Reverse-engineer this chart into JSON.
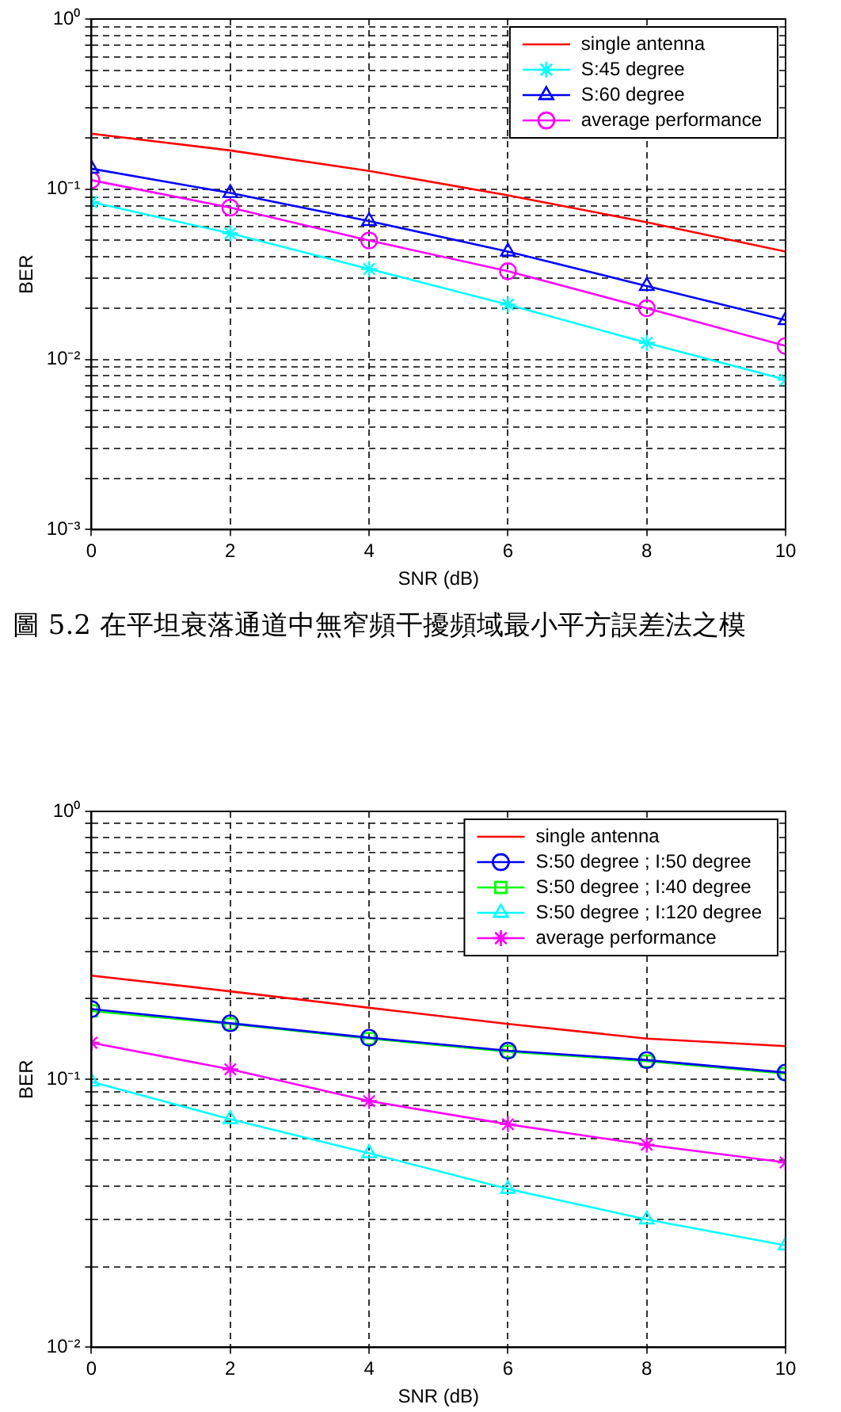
{
  "chart_data": [
    {
      "type": "line",
      "xlabel": "SNR (dB)",
      "ylabel": "BER",
      "log": "y",
      "grid": true,
      "legend": "top right",
      "line_style": "solid",
      "annotations": [
        "圖 5.2 在平坦衰落通道中無窄頻干擾頻域最小平方誤差法之模"
      ],
      "x": [
        0,
        2,
        4,
        6,
        8,
        10
      ],
      "xlim": [
        0,
        10
      ],
      "xticks": [
        0,
        2,
        4,
        6,
        8,
        10
      ],
      "ylim": [
        0.001,
        1
      ],
      "yticks": [
        {
          "value": 0.001,
          "label": "10⁻³"
        },
        {
          "value": 0.002,
          "label": null
        },
        {
          "value": 0.003,
          "label": null
        },
        {
          "value": 0.004,
          "label": null
        },
        {
          "value": 0.005,
          "label": null
        },
        {
          "value": 0.006,
          "label": null
        },
        {
          "value": 0.007,
          "label": null
        },
        {
          "value": 0.008,
          "label": null
        },
        {
          "value": 0.009,
          "label": null
        },
        {
          "value": 0.01,
          "label": "10⁻²"
        },
        {
          "value": 0.02,
          "label": null
        },
        {
          "value": 0.03,
          "label": null
        },
        {
          "value": 0.04,
          "label": null
        },
        {
          "value": 0.05,
          "label": null
        },
        {
          "value": 0.06,
          "label": null
        },
        {
          "value": 0.07,
          "label": null
        },
        {
          "value": 0.08,
          "label": null
        },
        {
          "value": 0.09,
          "label": null
        },
        {
          "value": 0.1,
          "label": "10⁻¹"
        },
        {
          "value": 0.2,
          "label": null
        },
        {
          "value": 0.3,
          "label": null
        },
        {
          "value": 0.4,
          "label": null
        },
        {
          "value": 0.5,
          "label": null
        },
        {
          "value": 0.6,
          "label": null
        },
        {
          "value": 0.7,
          "label": null
        },
        {
          "value": 0.8,
          "label": null
        },
        {
          "value": 0.9,
          "label": null
        },
        {
          "value": 1,
          "label": "10⁰"
        }
      ],
      "series": [
        {
          "name": "single antenna",
          "color": "#ff0000",
          "marker": "none",
          "values": [
            0.212,
            0.169,
            0.128,
            0.092,
            0.064,
            0.043
          ]
        },
        {
          "name": "S:45 degree",
          "color": "#00ffff",
          "marker": "cross",
          "values": [
            0.084,
            0.055,
            0.034,
            0.021,
            0.0125,
            0.0076
          ]
        },
        {
          "name": "S:60 degree",
          "color": "#0000ff",
          "marker": "triangle",
          "values": [
            0.132,
            0.095,
            0.065,
            0.043,
            0.027,
            0.017
          ]
        },
        {
          "name": "average performance",
          "color": "#ff00ff",
          "marker": "circle",
          "values": [
            0.113,
            0.078,
            0.05,
            0.033,
            0.02,
            0.012
          ]
        }
      ]
    },
    {
      "type": "line",
      "xlabel": "SNR (dB)",
      "ylabel": "BER",
      "log": "y",
      "grid": true,
      "legend": "top right",
      "line_style": "solid",
      "x": [
        0,
        2,
        4,
        6,
        8,
        10
      ],
      "xlim": [
        0,
        10
      ],
      "xticks": [
        0,
        2,
        4,
        6,
        8,
        10
      ],
      "ylim": [
        0.01,
        1
      ],
      "yticks": [
        {
          "value": 0.01,
          "label": "10⁻²"
        },
        {
          "value": 0.02,
          "label": null
        },
        {
          "value": 0.03,
          "label": null
        },
        {
          "value": 0.04,
          "label": null
        },
        {
          "value": 0.05,
          "label": null
        },
        {
          "value": 0.06,
          "label": null
        },
        {
          "value": 0.07,
          "label": null
        },
        {
          "value": 0.08,
          "label": null
        },
        {
          "value": 0.09,
          "label": null
        },
        {
          "value": 0.1,
          "label": "10⁻¹"
        },
        {
          "value": 0.2,
          "label": null
        },
        {
          "value": 0.3,
          "label": null
        },
        {
          "value": 0.4,
          "label": null
        },
        {
          "value": 0.5,
          "label": null
        },
        {
          "value": 0.6,
          "label": null
        },
        {
          "value": 0.7,
          "label": null
        },
        {
          "value": 0.8,
          "label": null
        },
        {
          "value": 0.9,
          "label": null
        },
        {
          "value": 1,
          "label": "10⁰"
        }
      ],
      "series": [
        {
          "name": "single antenna",
          "color": "#ff0000",
          "marker": "none",
          "values": [
            0.244,
            0.213,
            0.185,
            0.161,
            0.142,
            0.133
          ]
        },
        {
          "name": "S:50 degree ; I:50 degree",
          "color": "#0000ff",
          "marker": "circle",
          "values": [
            0.183,
            0.162,
            0.143,
            0.128,
            0.118,
            0.106
          ]
        },
        {
          "name": "S:50 degree ; I:40 degree",
          "color": "#00ff00",
          "marker": "square",
          "values": [
            0.18,
            0.161,
            0.142,
            0.127,
            0.117,
            0.105
          ]
        },
        {
          "name": "S:50 degree ; I:120 degree",
          "color": "#00ffff",
          "marker": "triangle",
          "values": [
            0.098,
            0.071,
            0.053,
            0.039,
            0.03,
            0.024
          ]
        },
        {
          "name": "average performance",
          "color": "#ff00ff",
          "marker": "cross",
          "values": [
            0.137,
            0.109,
            0.083,
            0.068,
            0.057,
            0.049
          ]
        }
      ]
    }
  ]
}
